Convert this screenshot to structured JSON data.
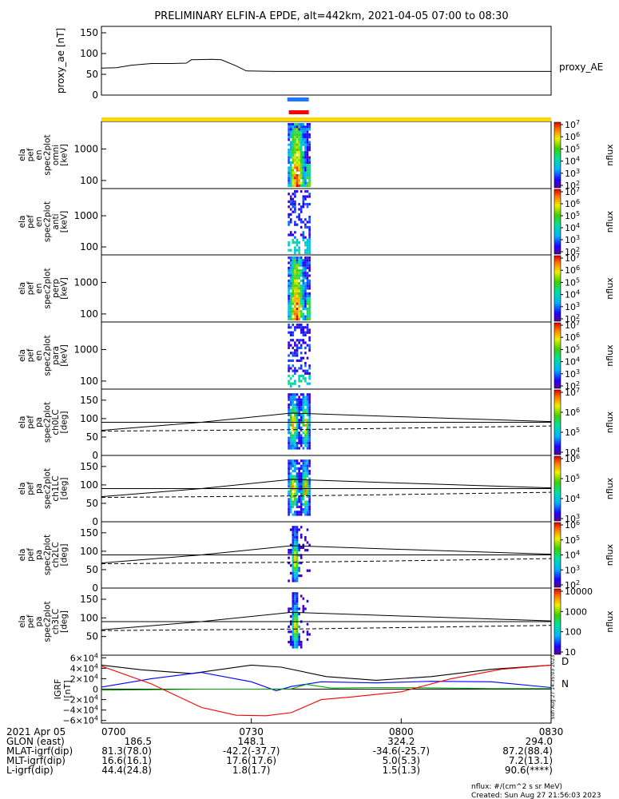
{
  "title": "PRELIMINARY ELFIN-A EPDE, alt=442km, 2021-04-05 07:00 to 08:30",
  "colors": {
    "blue_bar": "#1e78ff",
    "red_bar": "#ff0000",
    "yellow_bar": "#ffd700",
    "bx": "#0000ff",
    "by": "#00aa00",
    "bz": "#ff0000",
    "btot": "#000000"
  },
  "chart_data": [
    {
      "type": "line",
      "ylabel": "proxy_ae [nT]",
      "ylim": [
        0,
        150
      ],
      "yticks": [
        "150",
        "100",
        "50",
        "0"
      ],
      "legend": "proxy_AE",
      "series": [
        {
          "name": "proxy_AE",
          "x": [
            0,
            3,
            6,
            10,
            14,
            17,
            18,
            22,
            24,
            27,
            29,
            35,
            45,
            60,
            75,
            90
          ],
          "y": [
            65,
            66,
            72,
            76,
            76,
            77,
            85,
            86,
            85,
            70,
            58,
            57,
            57,
            57,
            57,
            57
          ]
        }
      ]
    },
    {
      "type": "heatmap",
      "ylabel": [
        "ela",
        "pef",
        "en",
        "spec2plot",
        "omni",
        "[keV]"
      ],
      "yticks": [
        "1000",
        "100"
      ],
      "colorbar_label": "nflux",
      "colorbar_ticks": [
        "10^7",
        "10^6",
        "10^5",
        "10^4",
        "10^3",
        "10^2"
      ]
    },
    {
      "type": "heatmap",
      "ylabel": [
        "ela",
        "pef",
        "en",
        "spec2plot",
        "anti",
        "[keV]"
      ],
      "yticks": [
        "1000",
        "100"
      ],
      "colorbar_label": "nflux",
      "colorbar_ticks": [
        "10^7",
        "10^6",
        "10^5",
        "10^4",
        "10^3",
        "10^2"
      ]
    },
    {
      "type": "heatmap",
      "ylabel": [
        "ela",
        "pef",
        "en",
        "spec2plot",
        "perp",
        "[keV]"
      ],
      "yticks": [
        "1000",
        "100"
      ],
      "colorbar_label": "nflux",
      "colorbar_ticks": [
        "10^7",
        "10^6",
        "10^5",
        "10^4",
        "10^3",
        "10^2"
      ]
    },
    {
      "type": "heatmap",
      "ylabel": [
        "ela",
        "pef",
        "en",
        "spec2plot",
        "para",
        "[keV]"
      ],
      "yticks": [
        "1000",
        "100"
      ],
      "colorbar_label": "nflux",
      "colorbar_ticks": [
        "10^7",
        "10^6",
        "10^5",
        "10^4",
        "10^3",
        "10^2"
      ]
    },
    {
      "type": "heatmap",
      "ylabel": [
        "ela",
        "pef",
        "pa",
        "spec2plot",
        "ch0LC",
        "[deg]"
      ],
      "ylim": [
        0,
        180
      ],
      "yticks": [
        "150",
        "100",
        "50",
        "0"
      ],
      "colorbar_label": "nflux",
      "colorbar_ticks": [
        "10^7",
        "10^6",
        "10^5",
        "10^4"
      ]
    },
    {
      "type": "heatmap",
      "ylabel": [
        "ela",
        "pef",
        "pa",
        "spec2plot",
        "ch1LC",
        "[deg]"
      ],
      "ylim": [
        0,
        180
      ],
      "yticks": [
        "150",
        "100",
        "50",
        "0"
      ],
      "colorbar_label": "nflux",
      "colorbar_ticks": [
        "10^6",
        "10^5",
        "10^4",
        "10^3"
      ]
    },
    {
      "type": "heatmap",
      "ylabel": [
        "ela",
        "pef",
        "pa",
        "spec2plot",
        "ch2LC",
        "[deg]"
      ],
      "ylim": [
        0,
        180
      ],
      "yticks": [
        "150",
        "100",
        "50",
        "0"
      ],
      "colorbar_label": "nflux",
      "colorbar_ticks": [
        "10^6",
        "10^5",
        "10^4",
        "10^3",
        "10^2"
      ]
    },
    {
      "type": "heatmap",
      "ylabel": [
        "ela",
        "pef",
        "pa",
        "spec2plot",
        "ch3LC",
        "[deg]"
      ],
      "ylim": [
        0,
        180
      ],
      "yticks": [
        "150",
        "100",
        "50"
      ],
      "colorbar_label": "nflux",
      "colorbar_ticks": [
        "10000",
        "1000",
        "100",
        "10"
      ]
    },
    {
      "type": "line",
      "ylabel": [
        "IGRF",
        "[nT]"
      ],
      "ylim": [
        -65000,
        65000
      ],
      "yticks": [
        "6×10^4",
        "4×10^4",
        "2×10^4",
        "0",
        "−2×10^4",
        "−4×10^4",
        "−6×10^4"
      ],
      "legend": [
        "D",
        "N"
      ],
      "side_note": "Sun Aug 27 14:35:03 2023",
      "series": [
        {
          "name": "black",
          "x": [
            0,
            8,
            18,
            30,
            36,
            45,
            55,
            66,
            78,
            90
          ],
          "y": [
            46000,
            37000,
            30000,
            46000,
            42000,
            24000,
            17000,
            24000,
            38000,
            46000
          ]
        },
        {
          "name": "blue",
          "x": [
            0,
            10,
            20,
            30,
            35,
            38,
            44,
            55,
            66,
            78,
            90
          ],
          "y": [
            4000,
            20000,
            32000,
            14000,
            -3000,
            5000,
            14000,
            12000,
            15000,
            14000,
            3000
          ]
        },
        {
          "name": "green",
          "x": [
            0,
            10,
            20,
            30,
            38,
            41,
            46,
            55,
            66,
            78,
            90
          ],
          "y": [
            -2000,
            -1000,
            0,
            0,
            500,
            9000,
            2000,
            3000,
            2500,
            1000,
            1000
          ]
        },
        {
          "name": "red",
          "x": [
            0,
            10,
            20,
            27,
            33,
            38,
            44,
            50,
            60,
            70,
            80,
            90
          ],
          "y": [
            44000,
            10000,
            -35000,
            -50000,
            -51000,
            -45000,
            -20000,
            -15000,
            -5000,
            20000,
            38000,
            46000
          ]
        }
      ]
    }
  ],
  "orbit_table": {
    "times": [
      "0700",
      "0730",
      "0800",
      "0830"
    ],
    "rows": [
      {
        "label": "2021 Apr 05",
        "values": [
          "",
          "",
          "",
          ""
        ]
      },
      {
        "label": "GLON (east)",
        "values": [
          "186.5",
          "148.1",
          "324.2",
          "294.0"
        ]
      },
      {
        "label": "MLAT-igrf(dip)",
        "values": [
          "81.3(78.0)",
          "-42.2(-37.7)",
          "-34.6(-25.7)",
          "87.2(88.4)"
        ]
      },
      {
        "label": "MLT-igrf(dip)",
        "values": [
          "16.6(16.1)",
          "17.6(17.6)",
          "5.0(5.3)",
          "7.2(13.1)"
        ]
      },
      {
        "label": "L-igrf(dip)",
        "values": [
          "44.4(24.8)",
          "1.8(1.7)",
          "1.5(1.3)",
          "90.6(****)"
        ]
      }
    ]
  },
  "footer": {
    "units": "nflux: #/(cm^2 s sr MeV)",
    "created": "Created: Sun Aug 27 21:56:03 2023"
  }
}
